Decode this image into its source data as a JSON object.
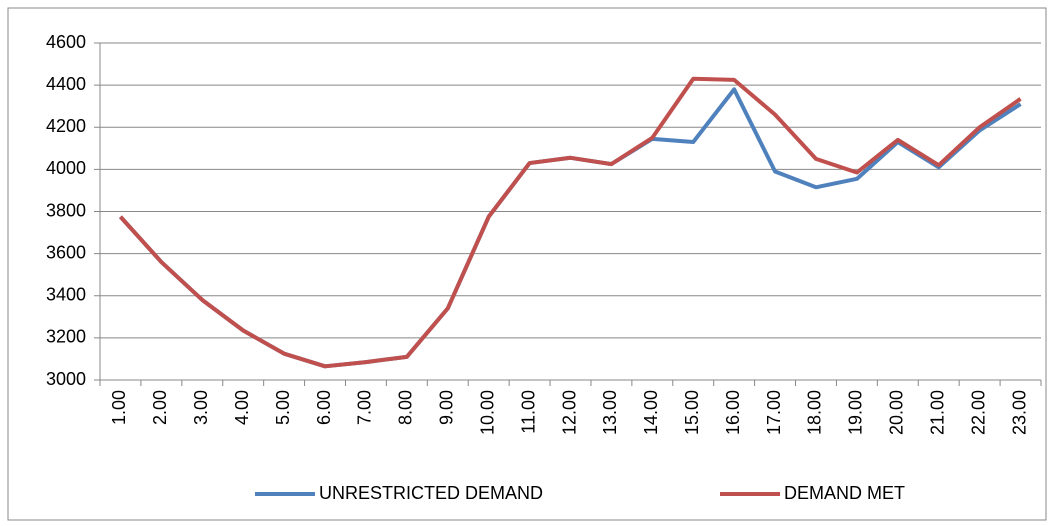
{
  "chart_data": {
    "type": "line",
    "categories": [
      "1.00",
      "2.00",
      "3.00",
      "4.00",
      "5.00",
      "6.00",
      "7.00",
      "8.00",
      "9.00",
      "10.00",
      "11.00",
      "12.00",
      "13.00",
      "14.00",
      "15.00",
      "16.00",
      "17.00",
      "18.00",
      "19.00",
      "20.00",
      "21.00",
      "22.00",
      "23.00"
    ],
    "series": [
      {
        "name": "UNRESTRICTED DEMAND",
        "color": "#4f81bd",
        "values": [
          3775,
          3560,
          3380,
          3235,
          3125,
          3065,
          3085,
          3110,
          3340,
          3775,
          4030,
          4055,
          4025,
          4145,
          4130,
          4380,
          3990,
          3915,
          3955,
          4130,
          4010,
          4185,
          4310
        ]
      },
      {
        "name": "DEMAND MET",
        "color": "#c0504d",
        "values": [
          3775,
          3560,
          3380,
          3235,
          3125,
          3065,
          3085,
          3110,
          3340,
          3775,
          4030,
          4055,
          4025,
          4150,
          4430,
          4425,
          4260,
          4050,
          3985,
          4140,
          4020,
          4200,
          4335
        ]
      }
    ],
    "ylim": [
      3000,
      4600
    ],
    "yticks": [
      3000,
      3200,
      3400,
      3600,
      3800,
      4000,
      4200,
      4400,
      4600
    ],
    "grid": true,
    "legend": "bottom"
  }
}
